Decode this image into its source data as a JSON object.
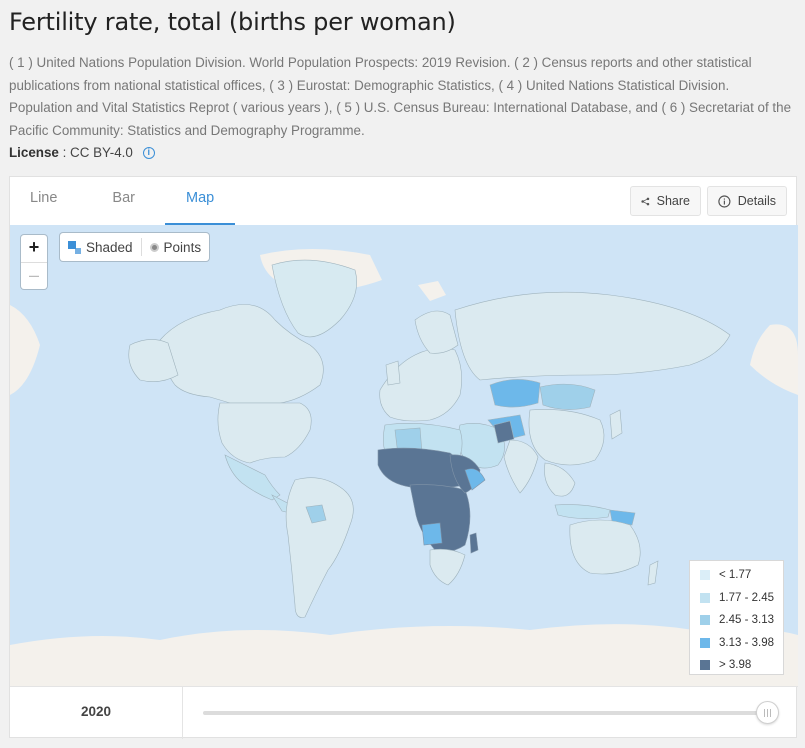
{
  "header": {
    "title": "Fertility rate, total (births per woman)",
    "sources": "( 1 ) United Nations Population Division. World Population Prospects: 2019 Revision. ( 2 ) Census reports and other statistical publications from national statistical offices, ( 3 ) Eurostat: Demographic Statistics, ( 4 ) United Nations Statistical Division. Population and Vital Statistics Reprot ( various years ), ( 5 ) U.S. Census Bureau: International Database, and ( 6 ) Secretariat of the Pacific Community: Statistics and Demography Programme.",
    "license_label": "License",
    "license_value": " : CC BY-4.0"
  },
  "tabs": [
    {
      "label": "Line"
    },
    {
      "label": "Bar"
    },
    {
      "label": "Map",
      "active": true
    }
  ],
  "actions": {
    "share_label": "Share",
    "details_label": "Details"
  },
  "map_controls": {
    "zoom_in": "+",
    "zoom_out": "–",
    "shaded_label": "Shaded",
    "points_label": "Points",
    "selected_mode": "Shaded"
  },
  "legend": [
    {
      "label": "< 1.77",
      "color": "#dbeef8"
    },
    {
      "label": "1.77 - 2.45",
      "color": "#c2e2f1"
    },
    {
      "label": "2.45 - 3.13",
      "color": "#9fd0ea"
    },
    {
      "label": "3.13 - 3.98",
      "color": "#6db8ea"
    },
    {
      "label": "> 3.98",
      "color": "#5a7594"
    }
  ],
  "timeline": {
    "year": "2020",
    "position": 1.0
  },
  "colors": {
    "accent": "#3b8fd7",
    "ocean": "#cfe4f6",
    "land_default": "#dbeaf0"
  }
}
